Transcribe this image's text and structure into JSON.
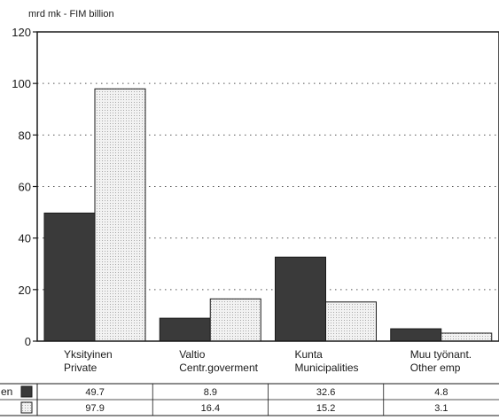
{
  "chart_data": {
    "type": "bar",
    "unit_label": "mrd mk - FIM billion",
    "ylim": [
      0,
      120
    ],
    "yticks": [
      0,
      20,
      40,
      60,
      80,
      100,
      120
    ],
    "grid": "horizontal dotted",
    "categories": [
      {
        "line1": "Yksityinen",
        "line2": "Private"
      },
      {
        "line1": "Valtio",
        "line2": "Centr.goverment"
      },
      {
        "line1": "Kunta",
        "line2": "Municipalities"
      },
      {
        "line1": "Muu työnant.",
        "line2": "Other emp"
      }
    ],
    "series": [
      {
        "name": "en",
        "color": "#3a3a3a",
        "values": [
          49.7,
          8.9,
          32.6,
          4.8
        ],
        "labels": [
          "49.7",
          "8.9",
          "32.6",
          "4.8"
        ]
      },
      {
        "name": "",
        "color": "#ececec",
        "values": [
          97.9,
          16.4,
          15.2,
          3.1
        ],
        "labels": [
          "97.9",
          "16.4",
          "15.2",
          "3.1"
        ]
      }
    ]
  }
}
